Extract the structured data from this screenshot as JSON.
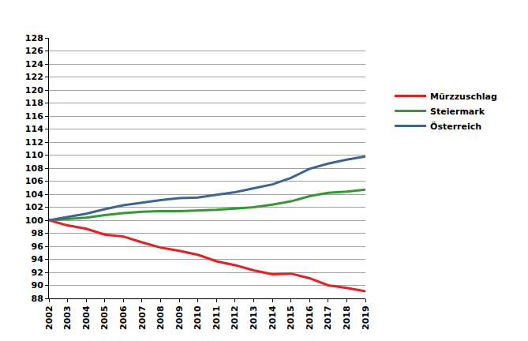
{
  "chart_data": {
    "type": "line",
    "x": [
      2002,
      2003,
      2004,
      2005,
      2006,
      2007,
      2008,
      2009,
      2010,
      2011,
      2012,
      2013,
      2014,
      2015,
      2016,
      2017,
      2018,
      2019
    ],
    "series": [
      {
        "name": "Mürzzuschlag",
        "color": "#ee1c1c",
        "values": [
          100,
          99.2,
          98.7,
          97.8,
          97.5,
          96.6,
          95.8,
          95.3,
          94.7,
          93.7,
          93.1,
          92.3,
          91.7,
          91.8,
          91.1,
          90.0,
          89.6,
          89.1
        ]
      },
      {
        "name": "Steiermark",
        "color": "#339933",
        "values": [
          100,
          100.2,
          100.4,
          100.8,
          101.1,
          101.3,
          101.4,
          101.4,
          101.5,
          101.6,
          101.8,
          102.0,
          102.4,
          102.9,
          103.7,
          104.2,
          104.4,
          104.7
        ]
      },
      {
        "name": "Österreich",
        "color": "#3d6496",
        "values": [
          100,
          100.5,
          101.0,
          101.7,
          102.3,
          102.7,
          103.1,
          103.4,
          103.5,
          103.9,
          104.3,
          104.9,
          105.5,
          106.5,
          107.9,
          108.7,
          109.3,
          109.8
        ]
      }
    ],
    "xlim": [
      2002,
      2019
    ],
    "xticks": [
      2002,
      2003,
      2004,
      2005,
      2006,
      2007,
      2008,
      2009,
      2010,
      2011,
      2012,
      2013,
      2014,
      2015,
      2016,
      2017,
      2018,
      2019
    ],
    "ylim": [
      88,
      128
    ],
    "yticks": [
      88,
      90,
      92,
      94,
      96,
      98,
      100,
      102,
      104,
      106,
      108,
      110,
      112,
      114,
      116,
      118,
      120,
      122,
      124,
      126,
      128
    ],
    "grid": true,
    "legend": "right"
  }
}
